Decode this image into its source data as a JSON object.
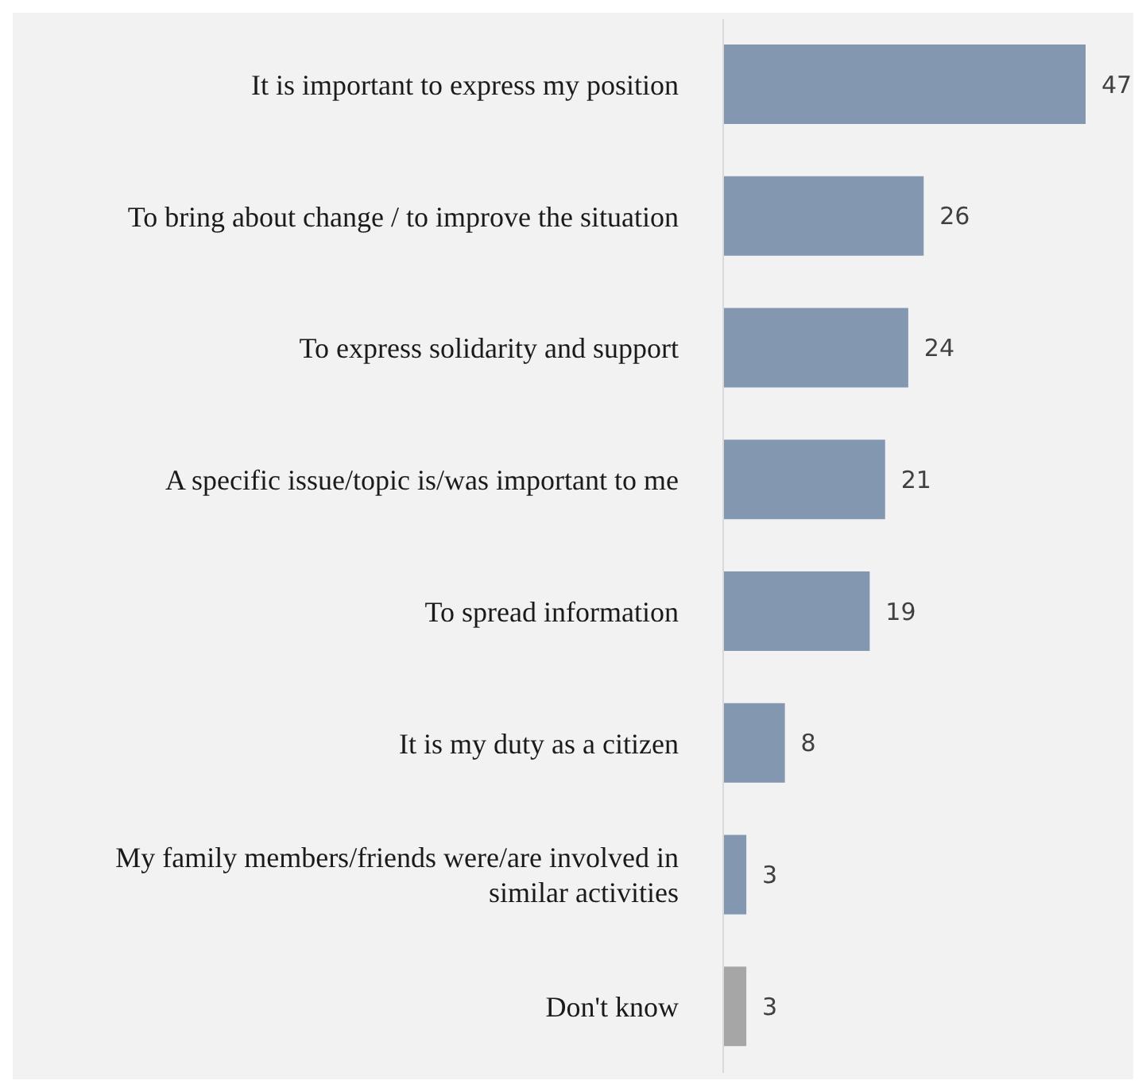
{
  "chart_data": {
    "type": "bar",
    "orientation": "horizontal",
    "data_labels": true,
    "categories": [
      "It is important to express my position",
      "To bring about change / to improve the situation",
      "To express solidarity and support",
      "A specific issue/topic is/was important to me",
      "To spread information",
      "It is my duty as a citizen",
      "My family members/friends were/are involved in similar activities",
      "Don't know"
    ],
    "values": [
      47,
      26,
      24,
      21,
      19,
      8,
      3,
      3
    ],
    "colors": [
      "#8497b0",
      "#8497b0",
      "#8497b0",
      "#8497b0",
      "#8497b0",
      "#8497b0",
      "#8497b0",
      "#a6a6a6"
    ]
  }
}
